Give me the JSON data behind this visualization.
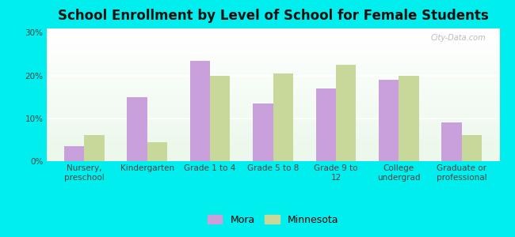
{
  "title": "School Enrollment by Level of School for Female Students",
  "categories": [
    "Nursery,\npreschool",
    "Kindergarten",
    "Grade 1 to 4",
    "Grade 5 to 8",
    "Grade 9 to\n12",
    "College\nundergrad",
    "Graduate or\nprofessional"
  ],
  "mora_values": [
    3.5,
    15.0,
    23.5,
    13.5,
    17.0,
    19.0,
    9.0
  ],
  "minnesota_values": [
    6.0,
    4.5,
    20.0,
    20.5,
    22.5,
    20.0,
    6.0
  ],
  "mora_color": "#c9a0dc",
  "minnesota_color": "#c8d89a",
  "background_color": "#00eeee",
  "yticks": [
    0,
    10,
    20,
    30
  ],
  "ylim": [
    0,
    31
  ],
  "bar_width": 0.32,
  "legend_labels": [
    "Mora",
    "Minnesota"
  ],
  "watermark": "City-Data.com",
  "title_fontsize": 12,
  "tick_fontsize": 7.5,
  "legend_fontsize": 9
}
